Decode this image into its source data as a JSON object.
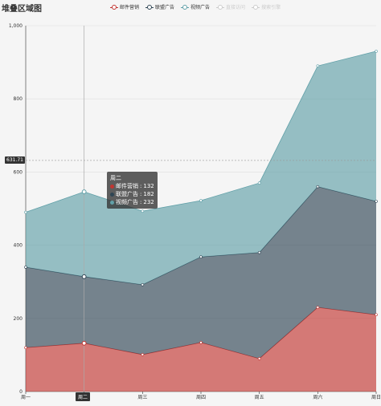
{
  "title": "堆叠区域图",
  "legend": [
    {
      "label": "邮件营销",
      "color": "#c23531",
      "active": true
    },
    {
      "label": "联盟广告",
      "color": "#2f4554",
      "active": true
    },
    {
      "label": "视频广告",
      "color": "#61a0a8",
      "active": true
    },
    {
      "label": "直接访问",
      "color": "#cccccc",
      "active": false
    },
    {
      "label": "搜索引擎",
      "color": "#cccccc",
      "active": false
    }
  ],
  "chart_data": {
    "type": "area",
    "stacked": true,
    "categories": [
      "周一",
      "周二",
      "周三",
      "周四",
      "周五",
      "周六",
      "周日"
    ],
    "series": [
      {
        "name": "邮件营销",
        "values": [
          120,
          132,
          101,
          134,
          90,
          230,
          210
        ],
        "color": "#c23531"
      },
      {
        "name": "联盟广告",
        "values": [
          220,
          182,
          191,
          234,
          290,
          330,
          310
        ],
        "color": "#2f4554"
      },
      {
        "name": "视频广告",
        "values": [
          150,
          232,
          201,
          154,
          190,
          330,
          410
        ],
        "color": "#61a0a8"
      }
    ],
    "ylim": [
      0,
      1000
    ],
    "yticks": [
      "0",
      "200",
      "400",
      "600",
      "800",
      "1,000"
    ],
    "grid": true,
    "pointer": {
      "category": "周二",
      "y_value_label": "631.71"
    }
  },
  "tooltip": {
    "header": "周二",
    "rows": [
      {
        "label": "邮件营销",
        "value": "132",
        "color": "#c23531"
      },
      {
        "label": "联盟广告",
        "value": "182",
        "color": "#2f4554"
      },
      {
        "label": "视频广告",
        "value": "232",
        "color": "#61a0a8"
      }
    ]
  }
}
